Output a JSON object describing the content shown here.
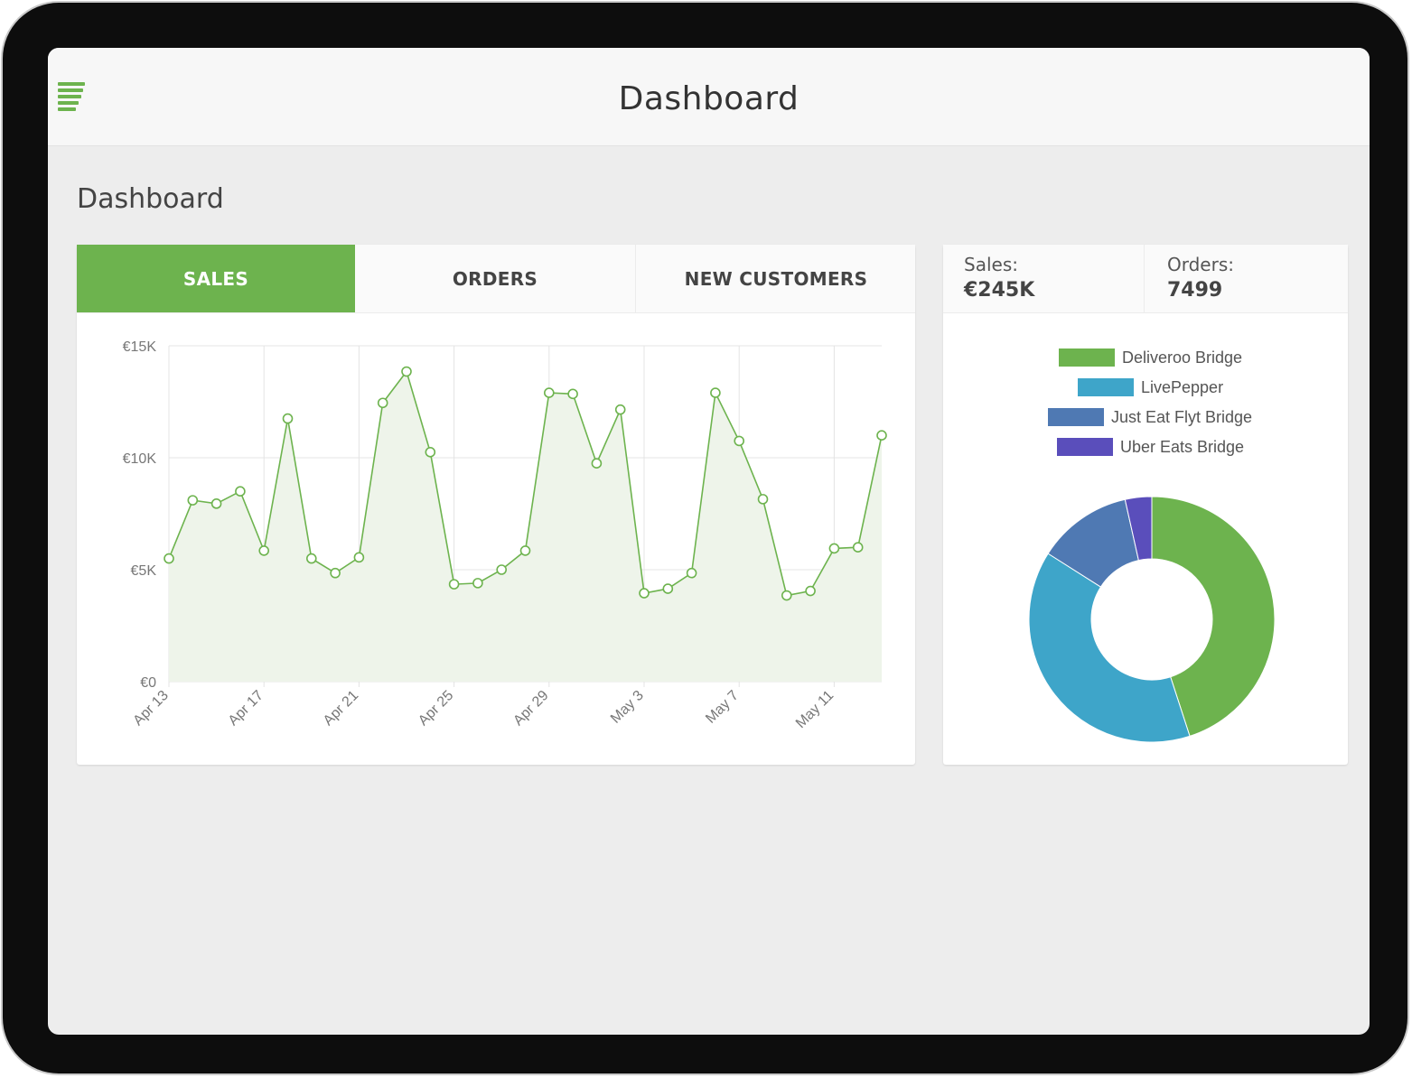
{
  "header": {
    "title": "Dashboard",
    "menu_icon": "hamburger-menu-icon"
  },
  "page": {
    "title": "Dashboard"
  },
  "tabs": [
    {
      "label": "SALES",
      "active": true
    },
    {
      "label": "ORDERS",
      "active": false
    },
    {
      "label": "NEW CUSTOMERS",
      "active": false
    }
  ],
  "summary": {
    "sales_label": "Sales:",
    "sales_value": "€245K",
    "orders_label": "Orders:",
    "orders_value": "7499"
  },
  "colors": {
    "accent": "#6db34e",
    "deliveroo": "#6db34e",
    "livepepper": "#3ea5c9",
    "justeat": "#4f79b3",
    "ubereats": "#5a4ebb"
  },
  "chart_data": [
    {
      "type": "area",
      "x_tick_labels": [
        "Apr 13",
        "Apr 17",
        "Apr 21",
        "Apr 25",
        "Apr 29",
        "May 3",
        "May 7",
        "May 11"
      ],
      "y_tick_labels": [
        "€0",
        "€5K",
        "€10K",
        "€15K"
      ],
      "ylim": [
        0,
        15000
      ],
      "grid": true,
      "series": [
        {
          "x": [
            "2024-04-13",
            "2024-04-14",
            "2024-04-15",
            "2024-04-16",
            "2024-04-17",
            "2024-04-18",
            "2024-04-19",
            "2024-04-20",
            "2024-04-21",
            "2024-04-22",
            "2024-04-23",
            "2024-04-24",
            "2024-04-25",
            "2024-04-26",
            "2024-04-27",
            "2024-04-28",
            "2024-04-29",
            "2024-04-30",
            "2024-05-01",
            "2024-05-02",
            "2024-05-03",
            "2024-05-04",
            "2024-05-05",
            "2024-05-06",
            "2024-05-07",
            "2024-05-08",
            "2024-05-09",
            "2024-05-10",
            "2024-05-11",
            "2024-05-12",
            "2024-05-13"
          ],
          "values": [
            5500,
            8100,
            7950,
            8500,
            5850,
            11750,
            5500,
            4850,
            5550,
            12450,
            13850,
            10250,
            4350,
            4400,
            5000,
            5850,
            12900,
            12850,
            9750,
            12150,
            3950,
            4150,
            4850,
            12900,
            10750,
            8150,
            3850,
            4050,
            5950,
            6000,
            11000
          ]
        }
      ]
    },
    {
      "type": "pie",
      "labels": [
        "Deliveroo Bridge",
        "LivePepper",
        "Just Eat Flyt Bridge",
        "Uber Eats Bridge"
      ],
      "values": [
        45,
        39,
        12.5,
        3.5
      ],
      "legend": "top"
    }
  ]
}
